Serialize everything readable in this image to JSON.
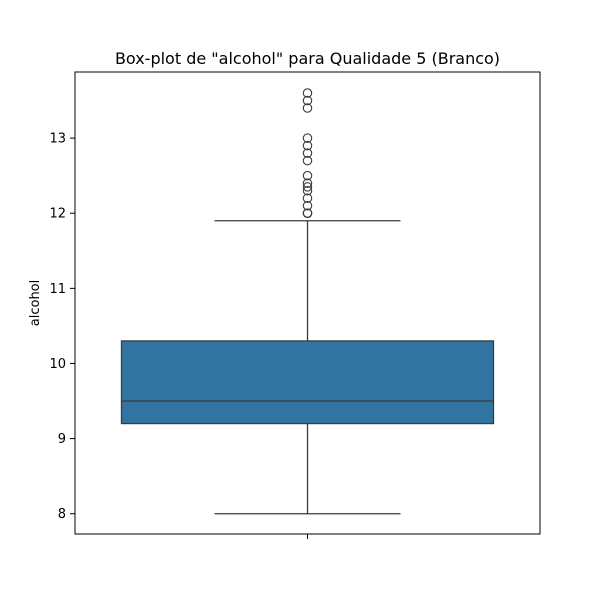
{
  "chart_data": {
    "type": "box",
    "title": "Box-plot de \"alcohol\" para Qualidade 5 (Branco)",
    "xlabel": "",
    "ylabel": "alcohol",
    "ylim": [
      7.73,
      13.88
    ],
    "y_ticks": [
      8,
      9,
      10,
      11,
      12,
      13
    ],
    "x_ticks": [
      ""
    ],
    "grid": false,
    "box_color": "#3274a1",
    "edge_color": "#3b3b3b",
    "boxes": [
      {
        "category": "",
        "whisker_low": 8.0,
        "q1": 9.2,
        "median": 9.5,
        "q3": 10.3,
        "whisker_high": 11.9,
        "outliers": [
          12.0,
          12.0,
          12.0,
          12.1,
          12.2,
          12.3,
          12.35,
          12.4,
          12.5,
          12.7,
          12.8,
          12.9,
          13.0,
          13.4,
          13.5,
          13.6
        ]
      }
    ]
  }
}
